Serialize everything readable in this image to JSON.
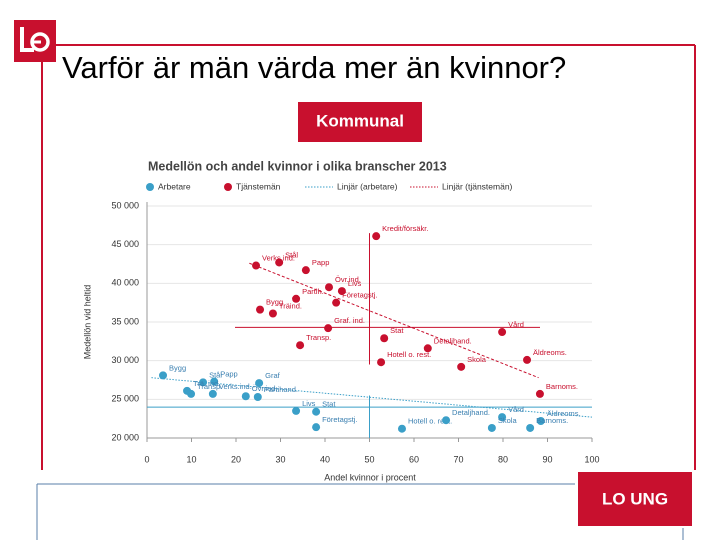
{
  "slide_title": "Varför är män värda mer än kvinnor?",
  "logo_text": "Kommunal",
  "footer_logo": "LO UNG",
  "chart_data": {
    "type": "scatter",
    "title": "Medellön och andel kvinnor i olika branscher 2013",
    "xlabel": "Andel kvinnor i procent",
    "ylabel": "Medellön vid heltid",
    "xlim": [
      0,
      100
    ],
    "ylim": [
      20000,
      50000
    ],
    "xticks": [
      0,
      10,
      20,
      30,
      40,
      50,
      60,
      70,
      80,
      90,
      100
    ],
    "yticks": [
      {
        "value": 20000,
        "label": "20 000"
      },
      {
        "value": 25000,
        "label": "25 000"
      },
      {
        "value": 30000,
        "label": "30 000"
      },
      {
        "value": 35000,
        "label": "35 000"
      },
      {
        "value": 40000,
        "label": "40 000"
      },
      {
        "value": 45000,
        "label": "45 000"
      },
      {
        "value": 50000,
        "label": "50 000"
      }
    ],
    "grid": true,
    "series": [
      {
        "name": "Arbetare",
        "color": "#3a9fc8",
        "trend_name": "Linjär (arbetare)",
        "labels": [
          "Bygg",
          "Stål",
          "Graf",
          "Papp",
          "Trä. ind.",
          "Partihand.",
          "Transp.",
          "Verks.ind.",
          "Övr.ind.",
          "Livs",
          "Stat",
          "Företagstj.",
          "Hotell o. rest.",
          "Detaljhand.",
          "Vård",
          "Skola",
          "Äldreoms.",
          "Barnoms."
        ],
        "x": [
          3.6,
          12.6,
          25.2,
          15.1,
          9.0,
          24.9,
          9.9,
          14.8,
          22.2,
          33.5,
          38.0,
          38.0,
          57.3,
          67.2,
          79.8,
          77.5,
          88.5,
          86.1
        ],
        "values": [
          28100,
          27200,
          27100,
          27300,
          26100,
          25300,
          25700,
          25700,
          25400,
          23500,
          23400,
          21400,
          21200,
          22300,
          22700,
          21300,
          22200,
          21300
        ],
        "trend": {
          "x": [
            1,
            100
          ],
          "y": [
            27800,
            22700
          ]
        },
        "mean_x": 50,
        "mean_y": 24000
      },
      {
        "name": "Tjänstemän",
        "color": "#c8102e",
        "trend_name": "Linjär (tjänstemän)",
        "labels": [
          "Kredit/försäkr.",
          "Stål",
          "Verks.ind.",
          "Papp",
          "Övr.ind.",
          "Livs",
          "Partih.",
          "Företagstj.",
          "Bygg",
          "Träind.",
          "Graf. ind.",
          "Transp.",
          "Stat",
          "Detaljhand.",
          "Vård",
          "Hotell o. rest.",
          "Skola",
          "Äldreoms.",
          "Barnoms."
        ],
        "x": [
          51.5,
          29.7,
          24.5,
          35.7,
          40.9,
          43.8,
          33.5,
          42.5,
          25.4,
          28.3,
          40.7,
          34.4,
          53.3,
          63.1,
          79.8,
          52.6,
          70.6,
          85.4,
          88.3
        ],
        "values": [
          46100,
          42700,
          42300,
          41700,
          39500,
          39000,
          38000,
          37500,
          36600,
          36100,
          34200,
          32000,
          32900,
          31600,
          33700,
          29800,
          29200,
          30100,
          25700
        ],
        "trend": {
          "x": [
            23,
            88
          ],
          "y": [
            42600,
            27800
          ]
        },
        "mean_x": 50,
        "mean_y": 34300
      }
    ]
  }
}
